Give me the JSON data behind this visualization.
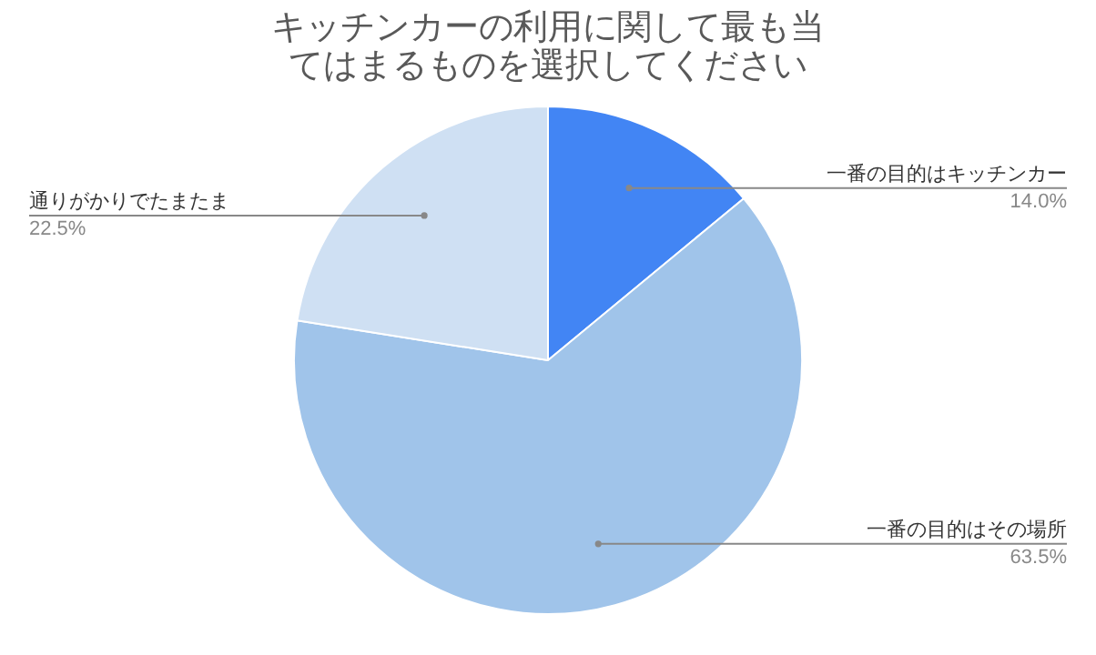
{
  "chart_data": {
    "type": "pie",
    "title": "キッチンカーの利用に関して最も当てはまるものを選択してください",
    "categories": [
      "一番の目的はキッチンカー",
      "一番の目的はその場所",
      "通りがかりでたまたま"
    ],
    "values": [
      14.0,
      63.5,
      22.5
    ],
    "colors": [
      "#4285f4",
      "#a0c4ea",
      "#cfe0f3"
    ],
    "value_labels": [
      "14.0%",
      "63.5%",
      "22.5%"
    ],
    "legend": false
  }
}
